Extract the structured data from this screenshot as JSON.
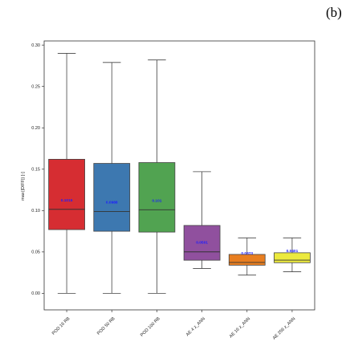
{
  "panel_label": "(b)",
  "chart_data": {
    "type": "box",
    "ylabel": "max(|DIFF|) [-]",
    "ylim": [
      -0.02,
      0.305
    ],
    "yticks": [
      "0.00",
      "0.05",
      "0.10",
      "0.15",
      "0.20",
      "0.25",
      "0.30"
    ],
    "ytick_values": [
      0.0,
      0.05,
      0.1,
      0.15,
      0.2,
      0.25,
      0.3
    ],
    "grid": false,
    "categories": [
      "POD 16 RB",
      "POD 50 RB",
      "POD 100 RB",
      "AE 4 z_ANN",
      "AE 16 z_ANN",
      "AE 256 z_ANN"
    ],
    "boxes": [
      {
        "name": "POD 16 RB",
        "min": 0.0,
        "q1": 0.077,
        "median": 0.1015,
        "q3": 0.162,
        "max": 0.29,
        "mean_label": "0.1015",
        "color": "#d62d32"
      },
      {
        "name": "POD 50 RB",
        "min": 0.0,
        "q1": 0.075,
        "median": 0.0988,
        "q3": 0.157,
        "max": 0.279,
        "mean_label": "0.0988",
        "color": "#3d78b0"
      },
      {
        "name": "POD 100 RB",
        "min": 0.0,
        "q1": 0.074,
        "median": 0.101,
        "q3": 0.158,
        "max": 0.282,
        "mean_label": "0.101",
        "color": "#51a351"
      },
      {
        "name": "AE 4 z_ANN",
        "min": 0.03,
        "q1": 0.04,
        "median": 0.0501,
        "q3": 0.082,
        "max": 0.147,
        "mean_label": "0.0501",
        "color": "#90509e"
      },
      {
        "name": "AE 16 z_ANN",
        "min": 0.022,
        "q1": 0.034,
        "median": 0.0373,
        "q3": 0.047,
        "max": 0.067,
        "mean_label": "0.0373",
        "color": "#e87e20"
      },
      {
        "name": "AE 256 z_ANN",
        "min": 0.026,
        "q1": 0.037,
        "median": 0.0401,
        "q3": 0.049,
        "max": 0.067,
        "mean_label": "0.0401",
        "color": "#ecea3e"
      }
    ],
    "label_color": "#1c1cff"
  }
}
